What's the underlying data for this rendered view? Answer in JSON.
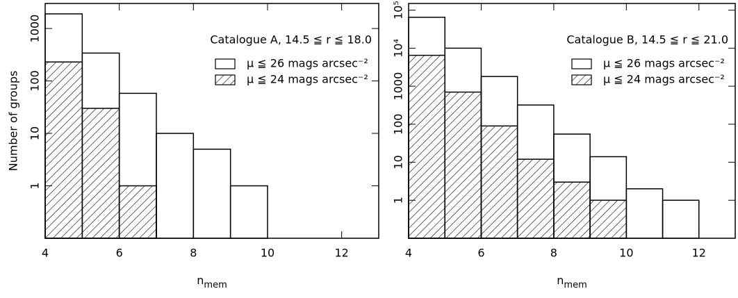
{
  "chart_data": [
    {
      "type": "histogram",
      "annotation": "Catalogue A, 14.5 ≦ r ≦ 18.0",
      "ylabel": "Number of groups",
      "xlabel": "n",
      "xlabel_sub": "mem",
      "log_y": true,
      "legend": "upper right",
      "xlim": [
        4,
        13
      ],
      "xticks": [
        4,
        6,
        8,
        10,
        12
      ],
      "ylim": [
        0.1,
        3000
      ],
      "yticks": [
        1,
        10,
        100,
        1000
      ],
      "series": [
        {
          "name": "μ ≦ 26 mags arcsec⁻²",
          "color": "#000000",
          "hatch": false,
          "bins": [
            4,
            5,
            6,
            7,
            8,
            9,
            10
          ],
          "values": [
            1900,
            340,
            58,
            10,
            5,
            1
          ]
        },
        {
          "name": "μ ≦ 24 mags arcsec⁻²",
          "color": "#000000",
          "hatch": true,
          "bins": [
            4,
            5,
            6,
            7
          ],
          "values": [
            230,
            30,
            1
          ]
        }
      ]
    },
    {
      "type": "histogram",
      "annotation": "Catalogue B, 14.5 ≦ r ≦ 21.0",
      "xlabel": "n",
      "xlabel_sub": "mem",
      "log_y": true,
      "legend": "upper right",
      "xlim": [
        4,
        13
      ],
      "xticks": [
        4,
        6,
        8,
        10,
        12
      ],
      "ylim": [
        0.1,
        150000
      ],
      "yticks": [
        1,
        10,
        100,
        1000,
        {
          "value": 10000,
          "label": "10⁴"
        },
        {
          "value": 100000,
          "label": "10⁵"
        }
      ],
      "series": [
        {
          "name": "μ ≦ 26 mags arcsec⁻²",
          "color": "#000000",
          "hatch": false,
          "bins": [
            4,
            5,
            6,
            7,
            8,
            9,
            10,
            11,
            12
          ],
          "values": [
            65000,
            10000,
            1800,
            320,
            55,
            14,
            2,
            1
          ]
        },
        {
          "name": "μ ≦ 24 mags arcsec⁻²",
          "color": "#000000",
          "hatch": true,
          "bins": [
            4,
            5,
            6,
            7,
            8,
            9,
            10
          ],
          "values": [
            6500,
            700,
            90,
            12,
            3,
            1
          ]
        }
      ]
    }
  ]
}
